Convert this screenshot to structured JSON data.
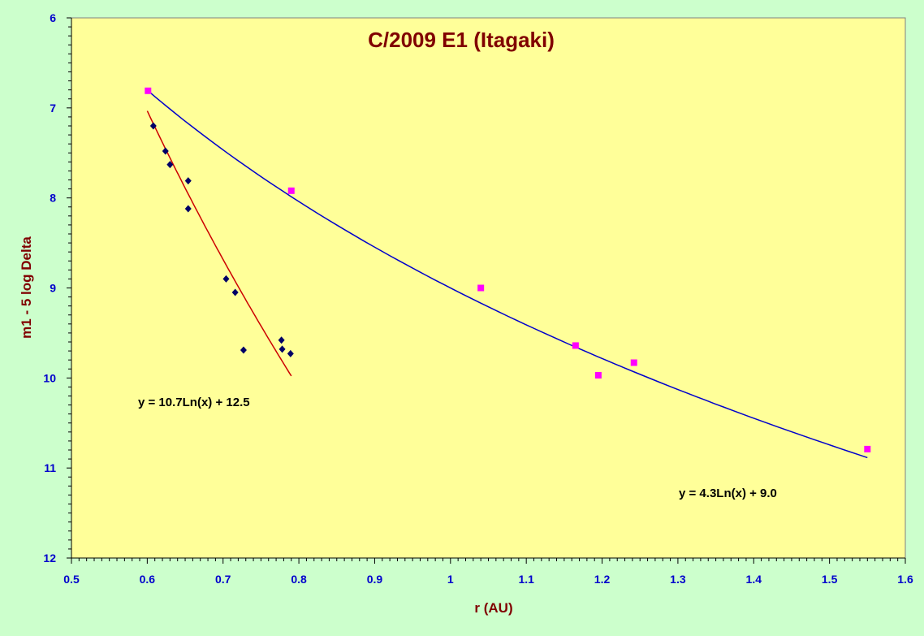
{
  "colors": {
    "background": "#ccffcc",
    "plot_area": "#ffff99",
    "axis_text": "#0000cc",
    "title_text": "#800000",
    "series_magenta": "#ff00ff",
    "series_navy": "#000066",
    "fit_blue": "#0000cc",
    "fit_red": "#cc0000"
  },
  "chart_data": {
    "type": "scatter",
    "title": "C/2009 E1 (Itagaki)",
    "xlabel": "r (AU)",
    "ylabel": "m1 - 5 log Delta",
    "xlim": [
      0.5,
      1.6
    ],
    "ylim": [
      6,
      12
    ],
    "y_reversed": true,
    "grid": false,
    "legend": "none",
    "x_ticks": [
      "0.5",
      "0.6",
      "0.7",
      "0.8",
      "0.9",
      "1",
      "1.1",
      "1.2",
      "1.3",
      "1.4",
      "1.5",
      "1.6"
    ],
    "y_ticks": [
      "6",
      "7",
      "8",
      "9",
      "10",
      "11",
      "12"
    ],
    "series": [
      {
        "marker": "square",
        "color": "#ff00ff",
        "points": [
          [
            0.601,
            6.81
          ],
          [
            0.79,
            7.92
          ],
          [
            1.04,
            9.0
          ],
          [
            1.165,
            9.64
          ],
          [
            1.195,
            9.97
          ],
          [
            1.242,
            9.83
          ],
          [
            1.55,
            10.79
          ]
        ]
      },
      {
        "marker": "diamond",
        "color": "#000066",
        "points": [
          [
            0.608,
            7.2
          ],
          [
            0.624,
            7.48
          ],
          [
            0.63,
            7.63
          ],
          [
            0.654,
            7.81
          ],
          [
            0.654,
            8.12
          ],
          [
            0.704,
            8.9
          ],
          [
            0.716,
            9.05
          ],
          [
            0.727,
            9.69
          ],
          [
            0.777,
            9.58
          ],
          [
            0.778,
            9.68
          ],
          [
            0.789,
            9.73
          ]
        ]
      }
    ],
    "trendlines": [
      {
        "kind": "log",
        "a": 4.3,
        "b": 9.0,
        "x_range": [
          0.6,
          1.55
        ],
        "color": "#0000cc"
      },
      {
        "kind": "log",
        "a": 10.7,
        "b": 12.5,
        "x_range": [
          0.6,
          0.79
        ],
        "color": "#cc0000"
      }
    ],
    "annotations": [
      {
        "text": "y = 10.7Ln(x) + 12.5"
      },
      {
        "text": "y = 4.3Ln(x) + 9.0"
      }
    ]
  }
}
